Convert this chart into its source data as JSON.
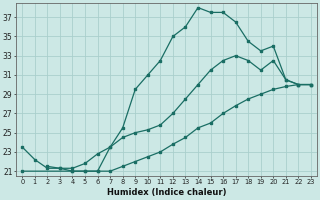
{
  "xlabel": "Humidex (Indice chaleur)",
  "bg_color": "#cce8e5",
  "grid_color": "#aacfcc",
  "line_color": "#1a6e64",
  "xlim": [
    -0.5,
    23.5
  ],
  "ylim": [
    20.5,
    38.5
  ],
  "xticks": [
    0,
    1,
    2,
    3,
    4,
    5,
    6,
    7,
    8,
    9,
    10,
    11,
    12,
    13,
    14,
    15,
    16,
    17,
    18,
    19,
    20,
    21,
    22,
    23
  ],
  "yticks": [
    21,
    23,
    25,
    27,
    29,
    31,
    33,
    35,
    37
  ],
  "line1_x": [
    0,
    1,
    2,
    3,
    4,
    5,
    6,
    7,
    8,
    9,
    10,
    11,
    12,
    13,
    14,
    15,
    16,
    17,
    18,
    19,
    20,
    21,
    22,
    23
  ],
  "line1_y": [
    23.5,
    22.2,
    21.3,
    21.3,
    21.0,
    21.0,
    21.0,
    23.5,
    25.5,
    29.5,
    31.0,
    32.5,
    35.0,
    36.0,
    38.0,
    37.5,
    37.5,
    36.5,
    34.5,
    33.5,
    34.0,
    30.5,
    30.0,
    30.0
  ],
  "line2_x": [
    2,
    3,
    4,
    5,
    6,
    7,
    8,
    9,
    10,
    11,
    12,
    13,
    14,
    15,
    16,
    17,
    18,
    19,
    20,
    21,
    22,
    23
  ],
  "line2_y": [
    21.5,
    21.3,
    21.3,
    21.8,
    22.8,
    23.5,
    24.5,
    25.0,
    25.3,
    25.8,
    27.0,
    28.5,
    30.0,
    31.5,
    32.5,
    33.0,
    32.5,
    31.5,
    32.5,
    30.5,
    30.0,
    30.0
  ],
  "line3_x": [
    0,
    4,
    5,
    6,
    7,
    8,
    9,
    10,
    11,
    12,
    13,
    14,
    15,
    16,
    17,
    18,
    19,
    20,
    21,
    22,
    23
  ],
  "line3_y": [
    21.0,
    21.0,
    21.0,
    21.0,
    21.0,
    21.5,
    22.0,
    22.5,
    23.0,
    23.8,
    24.5,
    25.5,
    26.0,
    27.0,
    27.8,
    28.5,
    29.0,
    29.5,
    29.8,
    30.0,
    30.0
  ]
}
